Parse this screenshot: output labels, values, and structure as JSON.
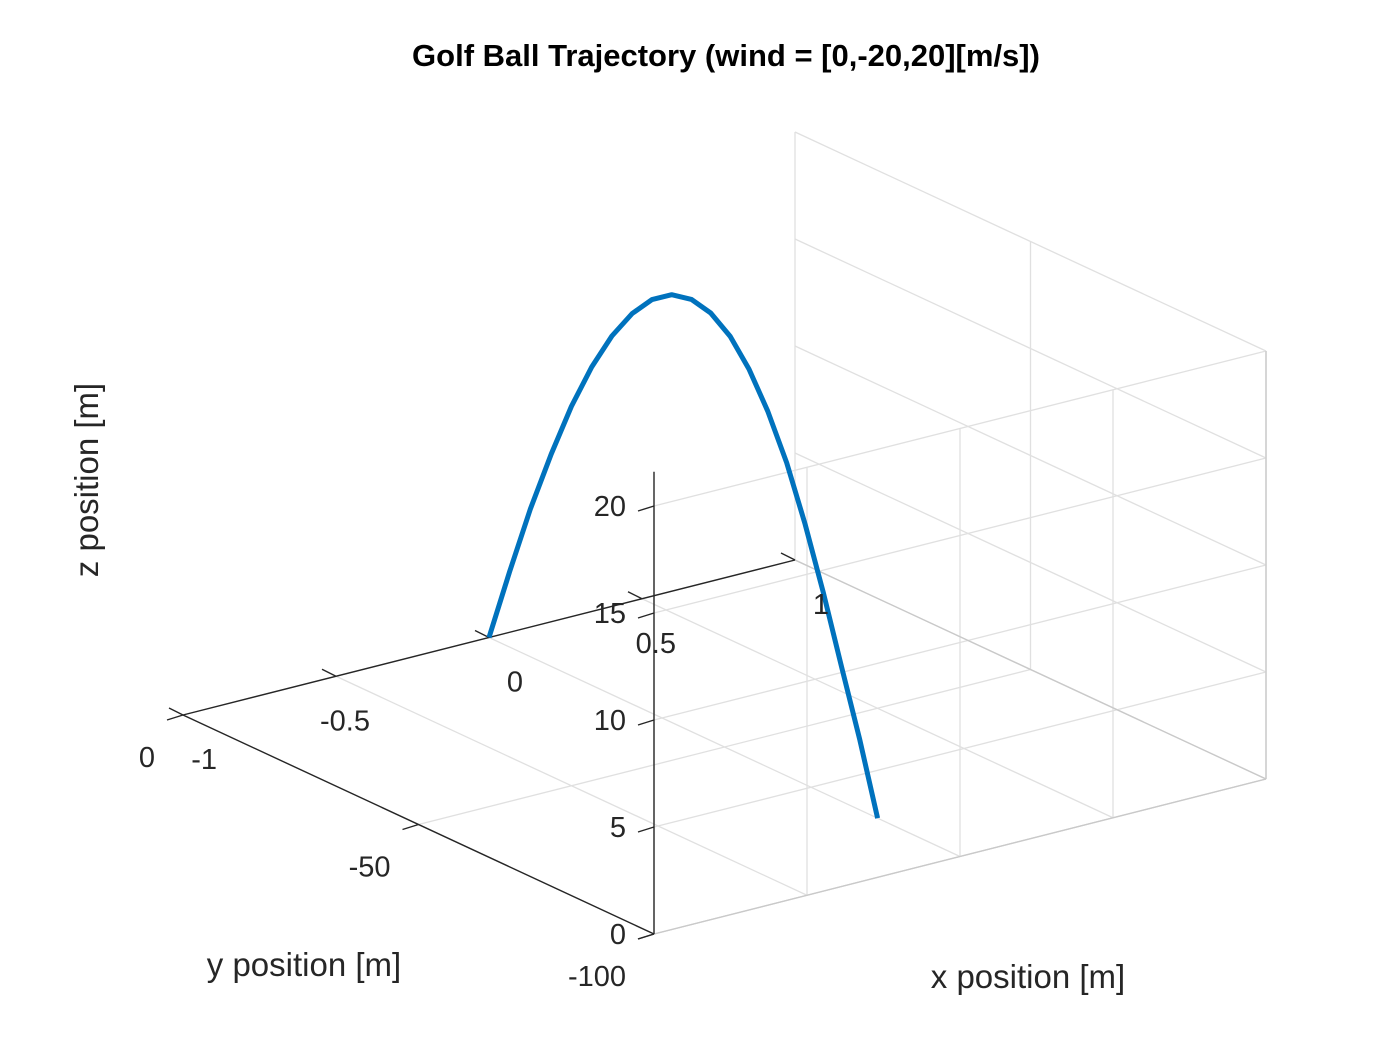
{
  "chart_data": {
    "type": "line",
    "dimensions": 3,
    "title": "Golf Ball Trajectory (wind = [0,-20,20][m/s])",
    "xlabel": "x position [m]",
    "ylabel": "y position [m]",
    "zlabel": "z position [m]",
    "xlim": [
      -1,
      1
    ],
    "ylim": [
      -100,
      0
    ],
    "zlim": [
      0,
      20
    ],
    "xticks": [
      -1,
      -0.5,
      0,
      0.5,
      1
    ],
    "xtick_labels": [
      "-1",
      "-0.5",
      "0",
      "0.5",
      "1"
    ],
    "yticks": [
      0,
      -50,
      -100
    ],
    "ytick_labels": [
      "0",
      "-50",
      "-100"
    ],
    "zticks": [
      0,
      5,
      10,
      15,
      20
    ],
    "ztick_labels": [
      "0",
      "5",
      "10",
      "15",
      "20"
    ],
    "grid": true,
    "series": [
      {
        "color": "#0072BD",
        "x": [
          0,
          0,
          0,
          0,
          0,
          0,
          0,
          0,
          0,
          0,
          0,
          0,
          0,
          0,
          0,
          0,
          0,
          0,
          0,
          0,
          0
        ],
        "y": [
          0,
          -4.4,
          -8.8,
          -13.2,
          -17.5,
          -21.8,
          -26.1,
          -30.4,
          -34.6,
          -38.8,
          -43,
          -47.1,
          -51.2,
          -55.2,
          -59.2,
          -63.2,
          -67.1,
          -71,
          -74.9,
          -78.7,
          -82.5
        ],
        "z": [
          0,
          3.54,
          6.91,
          9.92,
          12.59,
          14.87,
          16.76,
          18.25,
          19.33,
          19.99,
          20.2,
          19.98,
          19.31,
          18.19,
          16.63,
          14.63,
          12.18,
          9.35,
          6.25,
          3.29,
          0
        ]
      }
    ]
  }
}
